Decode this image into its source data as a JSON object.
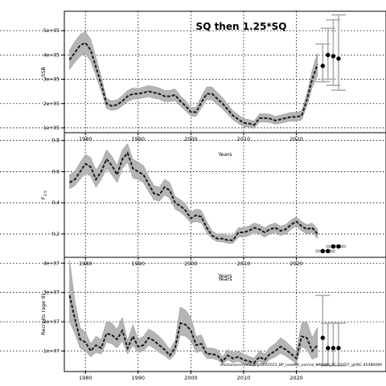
{
  "figure": {
    "title": "SQ then 1.25*SQ",
    "footnote": "stockassessment.org/NEA2023_BP_newMD_normal_smooth_RC-19707_gillRC-45486089"
  },
  "chart_data": [
    {
      "type": "line",
      "ylabel": "SSB",
      "xlabel": "Years",
      "xlim": [
        1976,
        2037
      ],
      "ylim": [
        80000,
        580000
      ],
      "xticks": [
        1980,
        1990,
        2000,
        2010,
        2020
      ],
      "yticks": [
        100000,
        200000,
        300000,
        400000,
        500000
      ],
      "ytick_labels": [
        "1e+05",
        "2e+05",
        "3e+05",
        "4e+05",
        "5e+05"
      ],
      "x": [
        1977,
        1978,
        1979,
        1980,
        1981,
        1982,
        1983,
        1984,
        1985,
        1986,
        1987,
        1988,
        1989,
        1990,
        1991,
        1992,
        1993,
        1994,
        1995,
        1996,
        1997,
        1998,
        1999,
        2000,
        2001,
        2002,
        2003,
        2004,
        2005,
        2006,
        2007,
        2008,
        2009,
        2010,
        2011,
        2012,
        2013,
        2014,
        2015,
        2016,
        2017,
        2018,
        2019,
        2020,
        2021,
        2022,
        2023,
        2024
      ],
      "values": [
        380000,
        410000,
        440000,
        450000,
        420000,
        350000,
        280000,
        200000,
        190000,
        195000,
        210000,
        230000,
        240000,
        240000,
        245000,
        250000,
        245000,
        240000,
        230000,
        230000,
        235000,
        210000,
        190000,
        165000,
        165000,
        205000,
        240000,
        240000,
        220000,
        200000,
        175000,
        150000,
        135000,
        120000,
        118000,
        112000,
        140000,
        140000,
        138000,
        130000,
        135000,
        140000,
        145000,
        145000,
        150000,
        215000,
        300000,
        360000
      ],
      "lower": [
        340000,
        370000,
        395000,
        405000,
        375000,
        315000,
        250000,
        180000,
        172000,
        176000,
        190000,
        208000,
        218000,
        220000,
        224000,
        228000,
        222000,
        218000,
        208000,
        208000,
        212000,
        190000,
        170000,
        148000,
        148000,
        182000,
        215000,
        215000,
        196000,
        178000,
        155000,
        132000,
        118000,
        105000,
        104000,
        98000,
        124000,
        124000,
        122000,
        115000,
        119000,
        124000,
        128000,
        128000,
        132000,
        190000,
        265000,
        315000
      ],
      "upper": [
        420000,
        455000,
        485000,
        495000,
        465000,
        390000,
        310000,
        222000,
        210000,
        215000,
        232000,
        254000,
        264000,
        262000,
        268000,
        274000,
        270000,
        264000,
        254000,
        254000,
        260000,
        232000,
        212000,
        184000,
        184000,
        230000,
        268000,
        268000,
        246000,
        224000,
        197000,
        170000,
        154000,
        138000,
        134000,
        128000,
        158000,
        158000,
        156000,
        147000,
        152000,
        158000,
        163000,
        164000,
        170000,
        240000,
        336000,
        408000
      ],
      "forecast": {
        "x": [
          2025,
          2026,
          2027,
          2028
        ],
        "values": [
          355000,
          400000,
          395000,
          385000
        ],
        "lower": [
          290000,
          300000,
          275000,
          255000
        ],
        "upper": [
          445000,
          510000,
          545000,
          565000
        ]
      }
    },
    {
      "type": "line",
      "ylabel": "F",
      "ylabel_sub": "3-5",
      "xlabel": "Years",
      "xlim": [
        1976,
        2037
      ],
      "ylim": [
        0.05,
        0.85
      ],
      "xticks": [
        1980,
        1990,
        2000,
        2010,
        2020
      ],
      "yticks": [
        0.2,
        0.4,
        0.6,
        0.8
      ],
      "ytick_labels": [
        "0.2",
        "0.4",
        "0.6",
        "0.8"
      ],
      "x": [
        1977,
        1978,
        1979,
        1980,
        1981,
        1982,
        1983,
        1984,
        1985,
        1986,
        1987,
        1988,
        1989,
        1990,
        1991,
        1992,
        1993,
        1994,
        1995,
        1996,
        1997,
        1998,
        1999,
        2000,
        2001,
        2002,
        2003,
        2004,
        2005,
        2006,
        2007,
        2008,
        2009,
        2010,
        2011,
        2012,
        2013,
        2014,
        2015,
        2016,
        2017,
        2018,
        2019,
        2020,
        2021,
        2022,
        2023,
        2024
      ],
      "values": [
        0.53,
        0.55,
        0.6,
        0.65,
        0.63,
        0.55,
        0.6,
        0.68,
        0.64,
        0.58,
        0.68,
        0.72,
        0.62,
        0.6,
        0.58,
        0.52,
        0.46,
        0.45,
        0.5,
        0.48,
        0.4,
        0.38,
        0.35,
        0.3,
        0.32,
        0.31,
        0.24,
        0.19,
        0.17,
        0.17,
        0.16,
        0.16,
        0.21,
        0.21,
        0.22,
        0.24,
        0.23,
        0.21,
        0.23,
        0.24,
        0.22,
        0.23,
        0.26,
        0.28,
        0.25,
        0.23,
        0.24,
        0.2
      ],
      "lower": [
        0.49,
        0.51,
        0.55,
        0.59,
        0.57,
        0.5,
        0.55,
        0.62,
        0.58,
        0.53,
        0.62,
        0.66,
        0.56,
        0.55,
        0.53,
        0.47,
        0.42,
        0.41,
        0.45,
        0.43,
        0.36,
        0.34,
        0.31,
        0.27,
        0.28,
        0.27,
        0.21,
        0.17,
        0.15,
        0.15,
        0.14,
        0.14,
        0.18,
        0.18,
        0.19,
        0.21,
        0.2,
        0.18,
        0.2,
        0.21,
        0.19,
        0.2,
        0.23,
        0.25,
        0.22,
        0.2,
        0.21,
        0.17
      ],
      "upper": [
        0.58,
        0.6,
        0.66,
        0.71,
        0.69,
        0.61,
        0.66,
        0.74,
        0.7,
        0.64,
        0.74,
        0.78,
        0.68,
        0.66,
        0.64,
        0.57,
        0.51,
        0.5,
        0.55,
        0.53,
        0.44,
        0.42,
        0.39,
        0.34,
        0.36,
        0.35,
        0.28,
        0.22,
        0.2,
        0.2,
        0.19,
        0.19,
        0.24,
        0.24,
        0.25,
        0.27,
        0.26,
        0.24,
        0.26,
        0.27,
        0.25,
        0.26,
        0.29,
        0.31,
        0.28,
        0.26,
        0.27,
        0.23
      ],
      "forecast": {
        "x": [
          2025,
          2026,
          2027,
          2028
        ],
        "values": [
          0.09,
          0.09,
          0.12,
          0.12
        ],
        "lower": [
          0.085,
          0.085,
          0.115,
          0.115
        ],
        "upper": [
          0.095,
          0.095,
          0.125,
          0.125
        ]
      }
    },
    {
      "type": "line",
      "ylabel": "Recruits (age 0)",
      "xlabel": "Years",
      "xlim": [
        1976,
        2037
      ],
      "ylim": [
        3000000,
        42000000
      ],
      "xticks": [
        1980,
        1990,
        2000,
        2010,
        2020
      ],
      "yticks": [
        10000000,
        20000000,
        30000000,
        40000000
      ],
      "ytick_labels": [
        "1e+07",
        "2e+07",
        "3e+07",
        "4e+07"
      ],
      "x": [
        1977,
        1978,
        1979,
        1980,
        1981,
        1982,
        1983,
        1984,
        1985,
        1986,
        1987,
        1988,
        1989,
        1990,
        1991,
        1992,
        1993,
        1994,
        1995,
        1996,
        1997,
        1998,
        1999,
        2000,
        2001,
        2002,
        2003,
        2004,
        2005,
        2006,
        2007,
        2008,
        2009,
        2010,
        2011,
        2012,
        2013,
        2014,
        2015,
        2016,
        2017,
        2018,
        2019,
        2020,
        2021,
        2022,
        2023,
        2024
      ],
      "values": [
        29000000,
        21000000,
        14000000,
        13000000,
        10000000,
        12000000,
        11000000,
        16000000,
        15500000,
        14000000,
        17000000,
        11000000,
        15000000,
        11500000,
        12000000,
        14500000,
        13500000,
        12000000,
        10500000,
        8500000,
        11000000,
        19500000,
        19000000,
        17000000,
        12000000,
        12500000,
        9000000,
        9000000,
        8500000,
        6500000,
        8500000,
        7500000,
        8000000,
        7000000,
        6500000,
        6000000,
        8000000,
        7000000,
        9000000,
        10000000,
        11500000,
        10500000,
        9000000,
        7500000,
        15000000,
        14500000,
        10000000,
        12000000
      ],
      "lower": [
        20000000,
        16000000,
        11000000,
        10000000,
        8000000,
        9500000,
        9000000,
        13000000,
        12500000,
        11000000,
        13500000,
        9000000,
        12000000,
        9500000,
        10000000,
        12000000,
        11000000,
        9500000,
        8500000,
        7000000,
        9000000,
        15500000,
        15000000,
        13500000,
        9500000,
        10000000,
        7500000,
        7500000,
        7000000,
        5500000,
        7000000,
        6000000,
        6500000,
        5500000,
        5200000,
        4800000,
        6500000,
        5500000,
        7200000,
        8000000,
        9200000,
        8300000,
        7000000,
        5800000,
        11500000,
        10500000,
        7200000,
        8000000
      ],
      "upper": [
        41000000,
        27000000,
        18000000,
        16500000,
        12500000,
        15000000,
        14000000,
        20000000,
        19500000,
        17500000,
        21500000,
        13500000,
        19000000,
        14000000,
        15000000,
        17500000,
        16500000,
        15000000,
        13000000,
        10500000,
        13500000,
        25000000,
        24000000,
        21500000,
        15000000,
        15500000,
        11000000,
        11000000,
        10500000,
        8000000,
        10500000,
        9500000,
        10000000,
        9000000,
        8200000,
        7600000,
        10000000,
        9000000,
        11300000,
        12500000,
        14500000,
        13300000,
        11500000,
        9700000,
        19500000,
        20000000,
        14500000,
        18000000
      ],
      "forecast": {
        "x": [
          2025,
          2026,
          2027,
          2028
        ],
        "values": [
          14500000,
          11000000,
          11000000,
          11000000
        ],
        "lower": [
          5500000,
          5000000,
          5000000,
          5000000
        ],
        "upper": [
          29000000,
          19500000,
          19500000,
          19500000
        ]
      }
    }
  ]
}
